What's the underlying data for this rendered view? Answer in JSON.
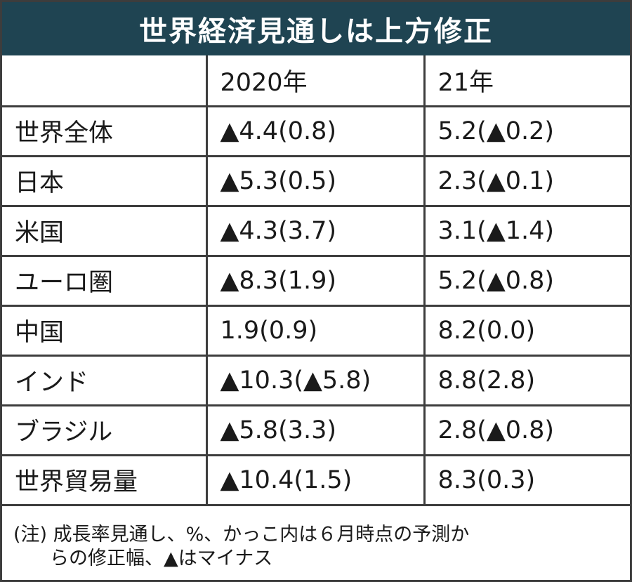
{
  "title": "世界経済見通しは上方修正",
  "table": {
    "headers": [
      "",
      "2020年",
      "21年"
    ],
    "rows": [
      {
        "label": "世界全体",
        "y2020": "▲4.4(0.8)",
        "y2021": "5.2(▲0.2)"
      },
      {
        "label": "日本",
        "y2020": "▲5.3(0.5)",
        "y2021": "2.3(▲0.1)"
      },
      {
        "label": "米国",
        "y2020": "▲4.3(3.7)",
        "y2021": "3.1(▲1.4)"
      },
      {
        "label": "ユーロ圏",
        "y2020": "▲8.3(1.9)",
        "y2021": "5.2(▲0.8)"
      },
      {
        "label": "中国",
        "y2020": "1.9(0.9)",
        "y2021": "8.2(0.0)"
      },
      {
        "label": "インド",
        "y2020": "▲10.3(▲5.8)",
        "y2021": "8.8(2.8)"
      },
      {
        "label": "ブラジル",
        "y2020": "▲5.8(3.3)",
        "y2021": "2.8(▲0.8)"
      },
      {
        "label": "世界貿易量",
        "y2020": "▲10.4(1.5)",
        "y2021": "8.3(0.3)"
      }
    ]
  },
  "note": {
    "line1": "(注) 成長率見通し、%、かっこ内は６月時点の予測か",
    "line2": "らの修正幅、▲はマイナス"
  }
}
